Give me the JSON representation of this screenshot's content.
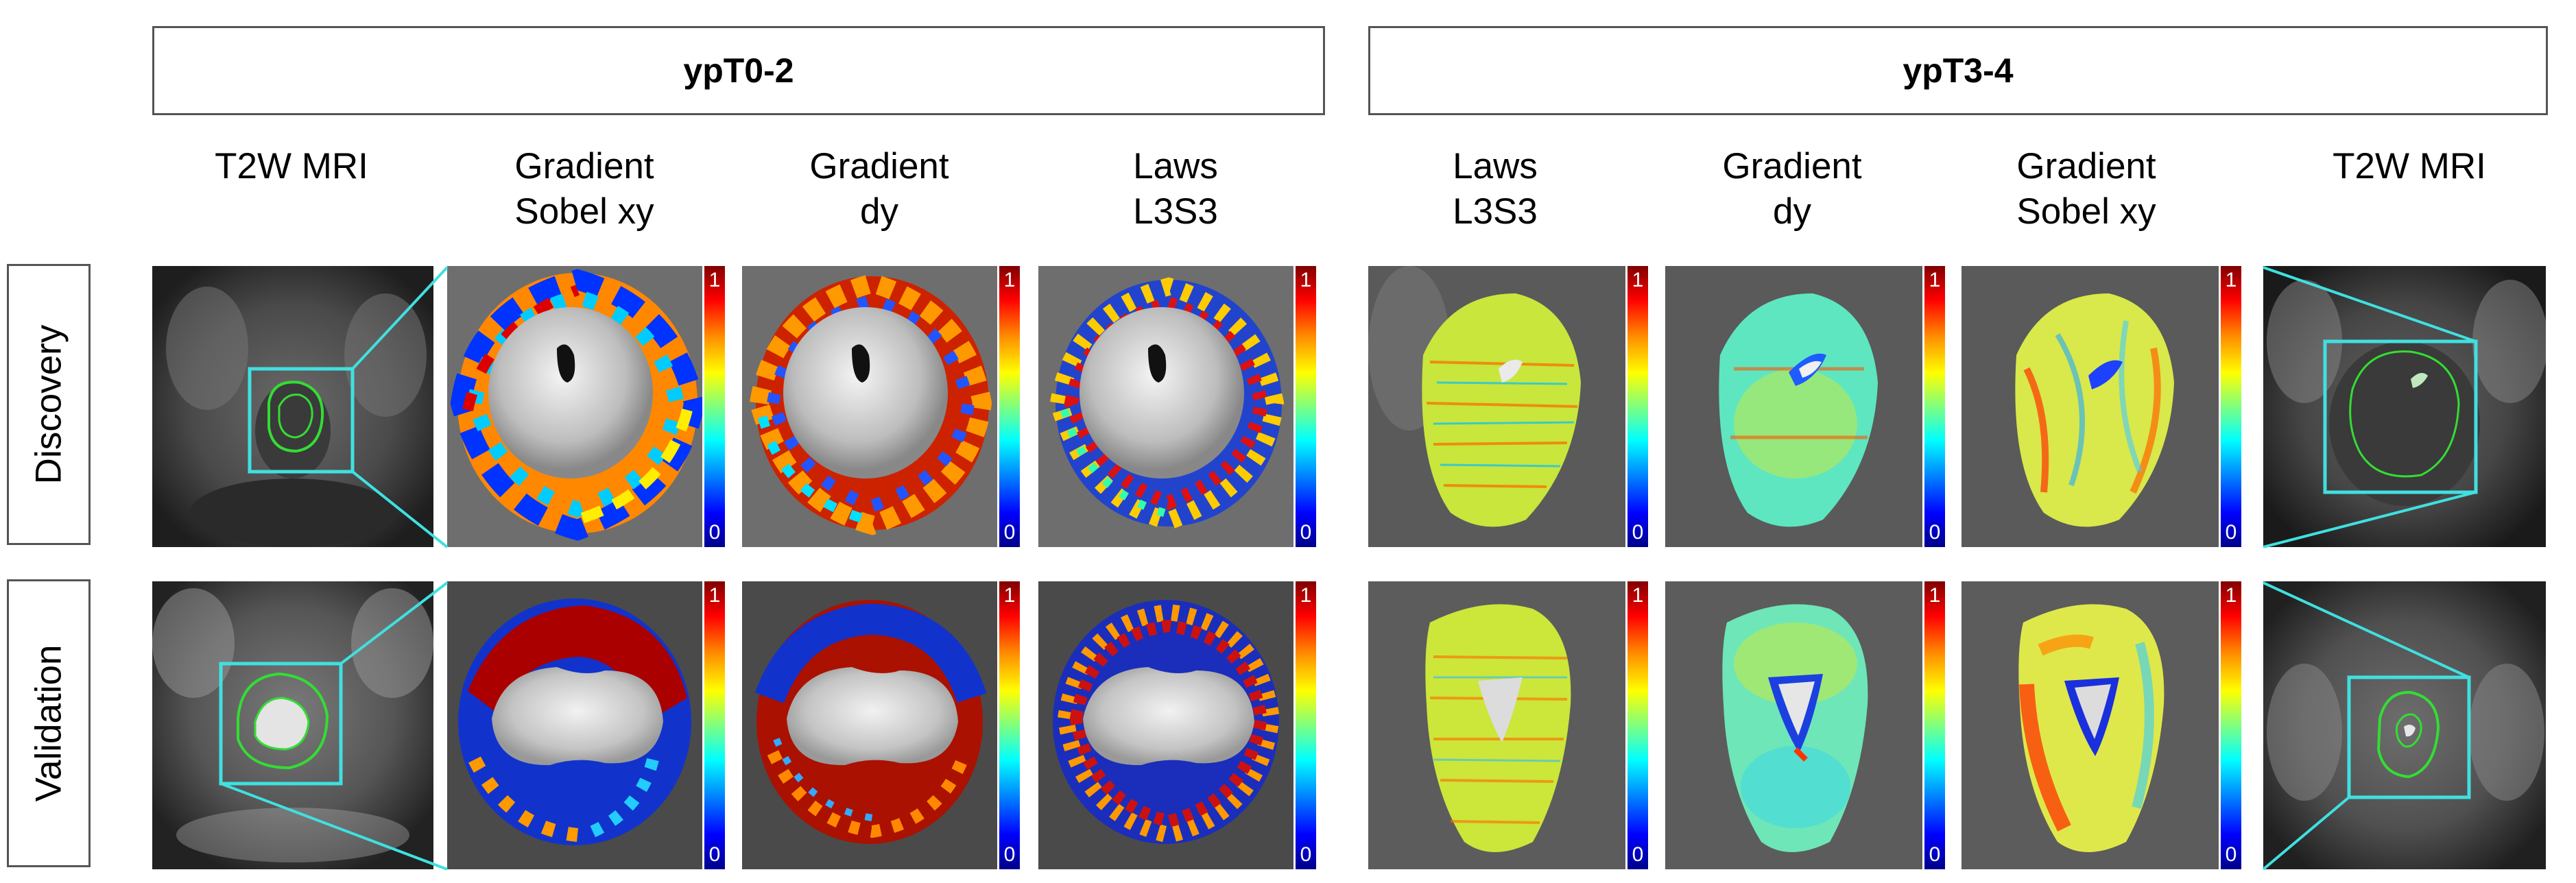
{
  "groups": {
    "left": "ypT0-2",
    "right": "ypT3-4"
  },
  "columns": {
    "left": [
      {
        "line1": "",
        "line2": "T2W MRI"
      },
      {
        "line1": "Gradient",
        "line2": "Sobel xy"
      },
      {
        "line1": "Gradient",
        "line2": "dy"
      },
      {
        "line1": "Laws",
        "line2": "L3S3"
      }
    ],
    "right": [
      {
        "line1": "Laws",
        "line2": "L3S3"
      },
      {
        "line1": "Gradient",
        "line2": "dy"
      },
      {
        "line1": "Gradient",
        "line2": "Sobel xy"
      },
      {
        "line1": "",
        "line2": "T2W MRI"
      }
    ]
  },
  "rows": {
    "discovery": "Discovery",
    "validation": "Validation"
  },
  "colorbar": {
    "max": "1",
    "min": "0"
  },
  "colors": {
    "zoom_outline": "#40e0e0",
    "contour": "#33dd33"
  }
}
